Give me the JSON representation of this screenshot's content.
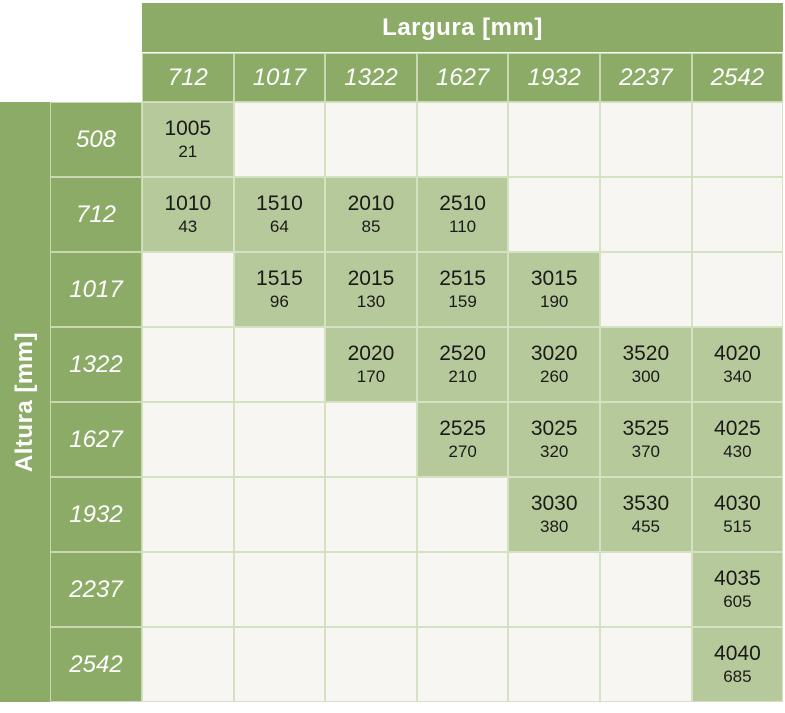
{
  "table": {
    "title_columns": "Largura [mm]",
    "title_rows": "Altura [mm]",
    "columns": [
      "712",
      "1017",
      "1322",
      "1627",
      "1932",
      "2237",
      "2542"
    ],
    "rows": [
      {
        "label": "508",
        "cells": [
          {
            "code": "1005",
            "value": "21"
          },
          null,
          null,
          null,
          null,
          null,
          null
        ]
      },
      {
        "label": "712",
        "cells": [
          {
            "code": "1010",
            "value": "43"
          },
          {
            "code": "1510",
            "value": "64"
          },
          {
            "code": "2010",
            "value": "85"
          },
          {
            "code": "2510",
            "value": "110"
          },
          null,
          null,
          null
        ]
      },
      {
        "label": "1017",
        "cells": [
          null,
          {
            "code": "1515",
            "value": "96"
          },
          {
            "code": "2015",
            "value": "130"
          },
          {
            "code": "2515",
            "value": "159"
          },
          {
            "code": "3015",
            "value": "190"
          },
          null,
          null
        ]
      },
      {
        "label": "1322",
        "cells": [
          null,
          null,
          {
            "code": "2020",
            "value": "170"
          },
          {
            "code": "2520",
            "value": "210"
          },
          {
            "code": "3020",
            "value": "260"
          },
          {
            "code": "3520",
            "value": "300"
          },
          {
            "code": "4020",
            "value": "340"
          }
        ]
      },
      {
        "label": "1627",
        "cells": [
          null,
          null,
          null,
          {
            "code": "2525",
            "value": "270"
          },
          {
            "code": "3025",
            "value": "320"
          },
          {
            "code": "3525",
            "value": "370"
          },
          {
            "code": "4025",
            "value": "430"
          }
        ]
      },
      {
        "label": "1932",
        "cells": [
          null,
          null,
          null,
          null,
          {
            "code": "3030",
            "value": "380"
          },
          {
            "code": "3530",
            "value": "455"
          },
          {
            "code": "4030",
            "value": "515"
          }
        ]
      },
      {
        "label": "2237",
        "cells": [
          null,
          null,
          null,
          null,
          null,
          null,
          {
            "code": "4035",
            "value": "605"
          }
        ]
      },
      {
        "label": "2542",
        "cells": [
          null,
          null,
          null,
          null,
          null,
          null,
          {
            "code": "4040",
            "value": "685"
          }
        ]
      }
    ]
  }
}
